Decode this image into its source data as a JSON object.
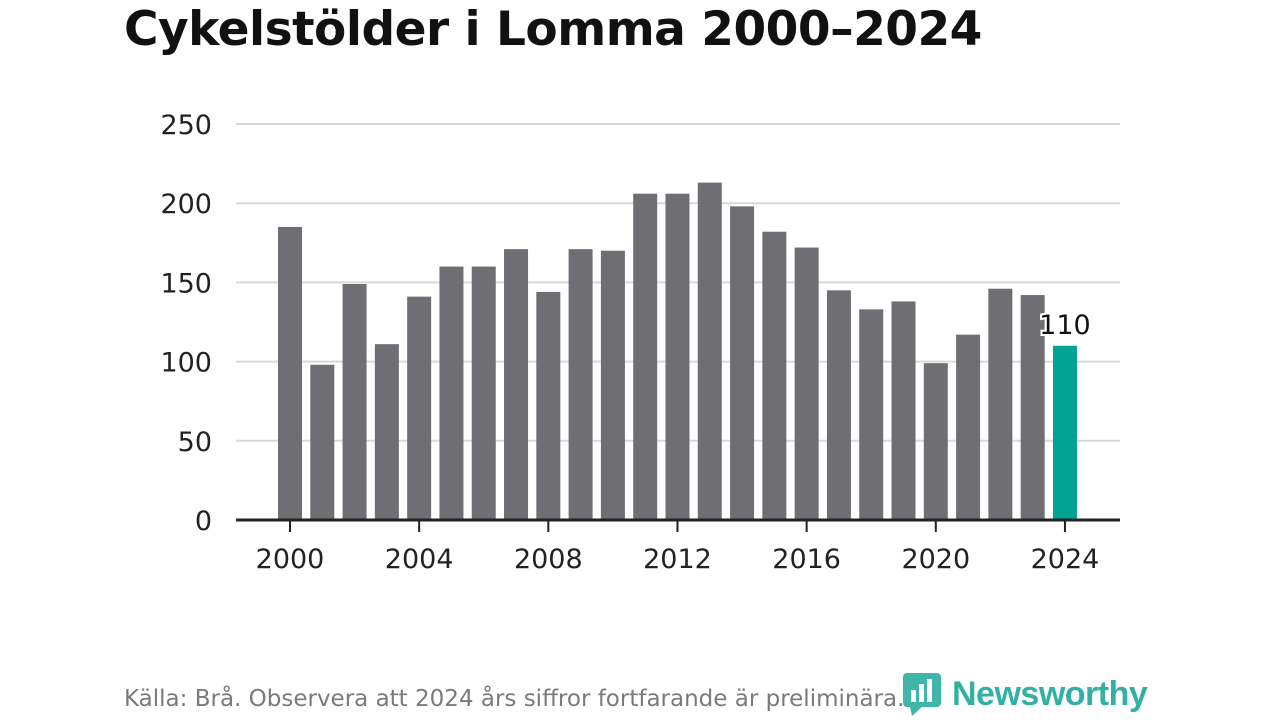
{
  "title": "Cykelstölder i Lomma 2000–2024",
  "footer": {
    "source": "Källa: Brå. Observera att 2024 års siffror fortfarande är preliminära.",
    "brand": "Newsworthy"
  },
  "colors": {
    "bar": "#6f6e73",
    "highlight": "#00a394",
    "grid": "#d9d9d9",
    "axis": "#222222",
    "brand": "#1ea89b"
  },
  "icons": {
    "brand_logo": "newsworthy-logo-icon"
  },
  "chart_data": {
    "type": "bar",
    "x": [
      2000,
      2001,
      2002,
      2003,
      2004,
      2005,
      2006,
      2007,
      2008,
      2009,
      2010,
      2011,
      2012,
      2013,
      2014,
      2015,
      2016,
      2017,
      2018,
      2019,
      2020,
      2021,
      2022,
      2023,
      2024
    ],
    "values": [
      185,
      98,
      149,
      111,
      141,
      160,
      160,
      171,
      144,
      171,
      170,
      206,
      206,
      213,
      198,
      182,
      172,
      145,
      133,
      138,
      99,
      117,
      146,
      142,
      110
    ],
    "highlight_index": 24,
    "highlight_label": "110",
    "ylim": [
      0,
      250
    ],
    "yticks": [
      0,
      50,
      100,
      150,
      200,
      250
    ],
    "xticks": [
      2000,
      2004,
      2008,
      2012,
      2016,
      2020,
      2024
    ],
    "grid": true
  }
}
